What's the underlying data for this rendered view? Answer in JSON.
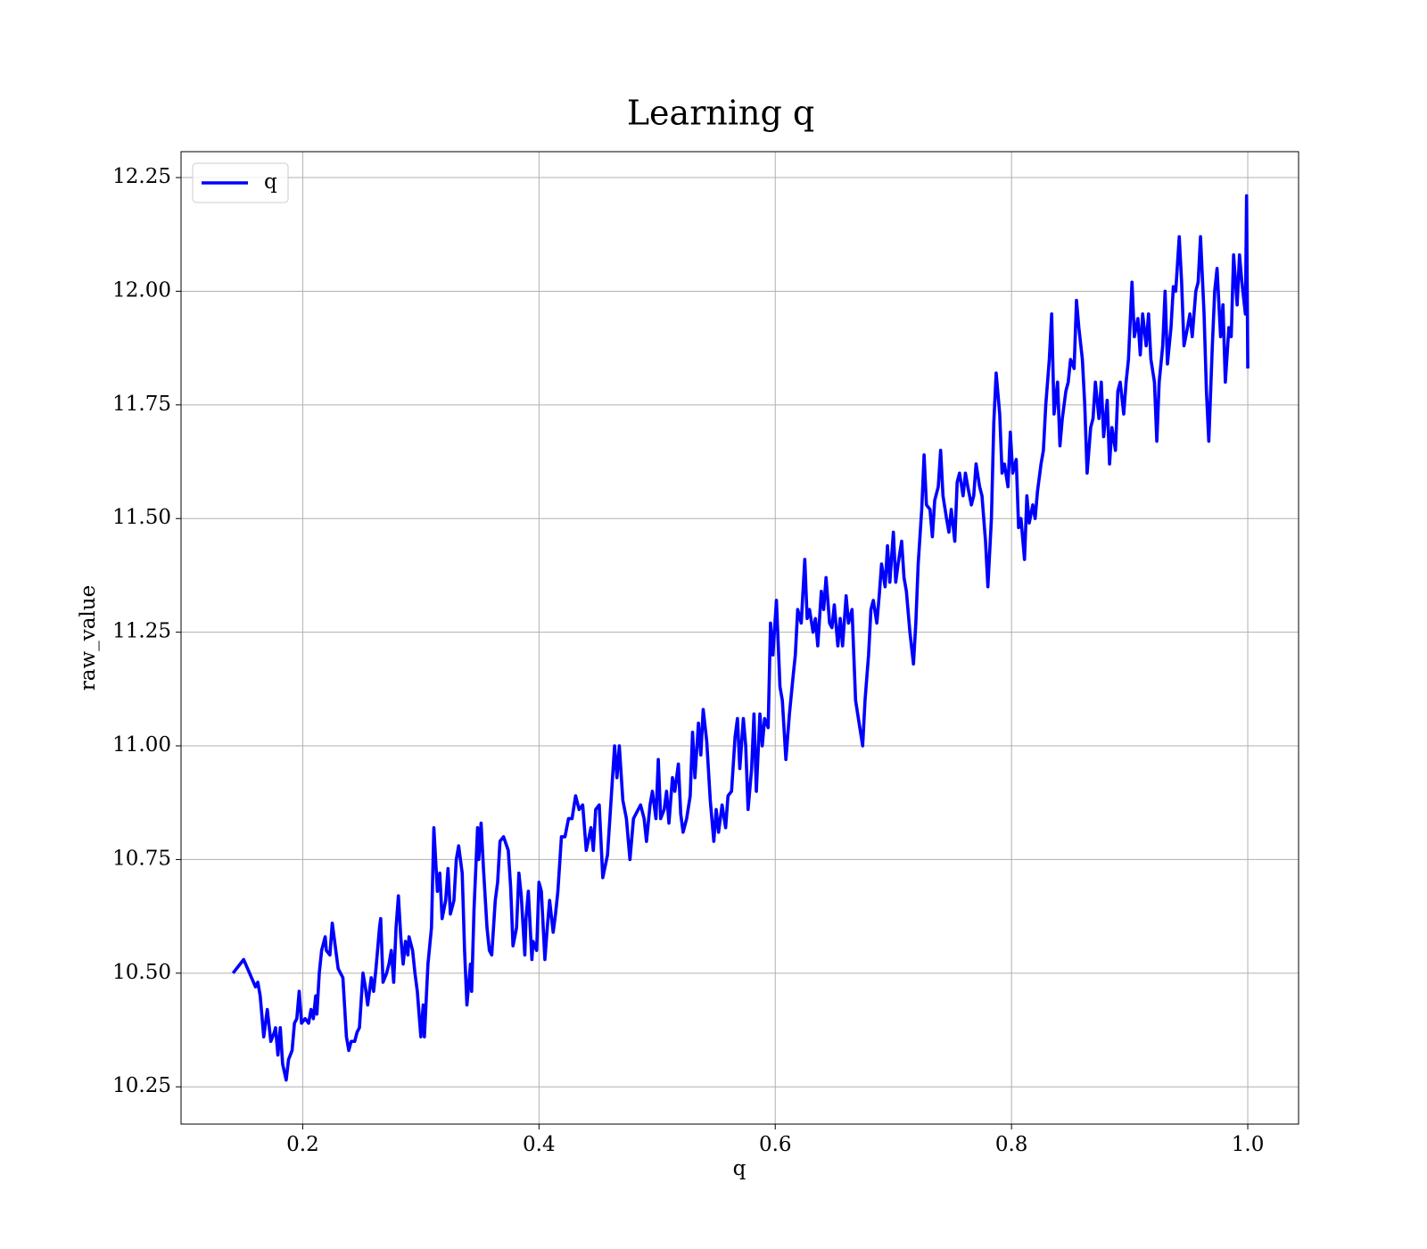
{
  "chart_data": {
    "type": "line",
    "title": "Learning q",
    "xlabel": "q",
    "ylabel": "raw_value",
    "x": [
      0.141,
      0.15,
      0.16,
      0.162,
      0.164,
      0.167,
      0.17,
      0.173,
      0.176,
      0.177,
      0.179,
      0.181,
      0.183,
      0.186,
      0.188,
      0.191,
      0.193,
      0.195,
      0.197,
      0.199,
      0.202,
      0.205,
      0.207,
      0.209,
      0.211,
      0.212,
      0.214,
      0.216,
      0.219,
      0.22,
      0.223,
      0.225,
      0.227,
      0.23,
      0.232,
      0.234,
      0.237,
      0.239,
      0.241,
      0.244,
      0.246,
      0.248,
      0.251,
      0.253,
      0.255,
      0.258,
      0.26,
      0.262,
      0.265,
      0.266,
      0.268,
      0.271,
      0.273,
      0.275,
      0.277,
      0.279,
      0.281,
      0.283,
      0.285,
      0.287,
      0.289,
      0.29,
      0.293,
      0.295,
      0.297,
      0.3,
      0.302,
      0.303,
      0.306,
      0.309,
      0.311,
      0.314,
      0.316,
      0.318,
      0.321,
      0.323,
      0.325,
      0.328,
      0.33,
      0.332,
      0.335,
      0.337,
      0.339,
      0.342,
      0.343,
      0.345,
      0.348,
      0.349,
      0.351,
      0.353,
      0.356,
      0.358,
      0.36,
      0.363,
      0.365,
      0.367,
      0.37,
      0.374,
      0.376,
      0.378,
      0.381,
      0.383,
      0.385,
      0.388,
      0.389,
      0.391,
      0.394,
      0.395,
      0.398,
      0.4,
      0.402,
      0.405,
      0.407,
      0.409,
      0.412,
      0.414,
      0.416,
      0.419,
      0.422,
      0.425,
      0.428,
      0.431,
      0.434,
      0.437,
      0.44,
      0.444,
      0.446,
      0.448,
      0.451,
      0.454,
      0.458,
      0.461,
      0.464,
      0.466,
      0.468,
      0.471,
      0.474,
      0.477,
      0.48,
      0.482,
      0.486,
      0.489,
      0.491,
      0.494,
      0.496,
      0.499,
      0.501,
      0.503,
      0.506,
      0.508,
      0.51,
      0.513,
      0.515,
      0.518,
      0.52,
      0.522,
      0.525,
      0.528,
      0.53,
      0.532,
      0.535,
      0.537,
      0.539,
      0.542,
      0.545,
      0.548,
      0.55,
      0.552,
      0.555,
      0.558,
      0.56,
      0.563,
      0.566,
      0.568,
      0.57,
      0.573,
      0.575,
      0.577,
      0.58,
      0.582,
      0.584,
      0.587,
      0.589,
      0.591,
      0.594,
      0.596,
      0.598,
      0.601,
      0.604,
      0.606,
      0.609,
      0.612,
      0.615,
      0.617,
      0.619,
      0.622,
      0.625,
      0.627,
      0.629,
      0.632,
      0.634,
      0.636,
      0.639,
      0.641,
      0.643,
      0.646,
      0.648,
      0.65,
      0.653,
      0.655,
      0.657,
      0.66,
      0.662,
      0.665,
      0.668,
      0.671,
      0.674,
      0.676,
      0.679,
      0.681,
      0.683,
      0.686,
      0.688,
      0.69,
      0.693,
      0.695,
      0.697,
      0.7,
      0.702,
      0.704,
      0.707,
      0.709,
      0.711,
      0.714,
      0.717,
      0.719,
      0.721,
      0.724,
      0.726,
      0.728,
      0.731,
      0.733,
      0.735,
      0.738,
      0.74,
      0.742,
      0.745,
      0.747,
      0.749,
      0.752,
      0.754,
      0.756,
      0.759,
      0.761,
      0.763,
      0.766,
      0.768,
      0.77,
      0.773,
      0.775,
      0.778,
      0.78,
      0.783,
      0.785,
      0.787,
      0.79,
      0.792,
      0.794,
      0.797,
      0.799,
      0.801,
      0.804,
      0.806,
      0.808,
      0.811,
      0.813,
      0.815,
      0.818,
      0.82,
      0.822,
      0.825,
      0.827,
      0.829,
      0.832,
      0.834,
      0.836,
      0.839,
      0.841,
      0.843,
      0.846,
      0.848,
      0.85,
      0.853,
      0.855,
      0.857,
      0.86,
      0.862,
      0.864,
      0.867,
      0.869,
      0.871,
      0.874,
      0.876,
      0.878,
      0.881,
      0.883,
      0.885,
      0.888,
      0.89,
      0.892,
      0.895,
      0.897,
      0.899,
      0.902,
      0.904,
      0.907,
      0.909,
      0.911,
      0.914,
      0.916,
      0.918,
      0.921,
      0.923,
      0.925,
      0.928,
      0.93,
      0.932,
      0.935,
      0.937,
      0.939,
      0.942,
      0.944,
      0.946,
      0.949,
      0.951,
      0.953,
      0.956,
      0.958,
      0.96,
      0.963,
      0.965,
      0.967,
      0.97,
      0.972,
      0.974,
      0.977,
      0.979,
      0.981,
      0.984,
      0.986,
      0.988,
      0.991,
      0.993,
      0.995,
      0.998,
      0.999,
      1.0
    ],
    "series": [
      {
        "name": "q",
        "color": "#0000ff",
        "values": [
          10.5,
          10.53,
          10.47,
          10.48,
          10.45,
          10.36,
          10.42,
          10.35,
          10.37,
          10.38,
          10.32,
          10.38,
          10.3,
          10.265,
          10.31,
          10.33,
          10.39,
          10.4,
          10.46,
          10.39,
          10.4,
          10.39,
          10.42,
          10.4,
          10.45,
          10.41,
          10.5,
          10.55,
          10.58,
          10.55,
          10.54,
          10.61,
          10.57,
          10.51,
          10.5,
          10.49,
          10.36,
          10.33,
          10.35,
          10.35,
          10.37,
          10.38,
          10.5,
          10.47,
          10.43,
          10.49,
          10.46,
          10.51,
          10.6,
          10.62,
          10.48,
          10.5,
          10.52,
          10.55,
          10.48,
          10.6,
          10.67,
          10.58,
          10.52,
          10.57,
          10.54,
          10.58,
          10.55,
          10.5,
          10.46,
          10.36,
          10.43,
          10.36,
          10.52,
          10.6,
          10.82,
          10.68,
          10.72,
          10.62,
          10.66,
          10.73,
          10.63,
          10.66,
          10.75,
          10.78,
          10.72,
          10.55,
          10.43,
          10.52,
          10.46,
          10.64,
          10.82,
          10.75,
          10.83,
          10.73,
          10.6,
          10.55,
          10.54,
          10.66,
          10.7,
          10.79,
          10.8,
          10.77,
          10.69,
          10.56,
          10.6,
          10.72,
          10.67,
          10.54,
          10.62,
          10.68,
          10.53,
          10.57,
          10.55,
          10.7,
          10.68,
          10.53,
          10.6,
          10.66,
          10.59,
          10.63,
          10.68,
          10.8,
          10.8,
          10.84,
          10.84,
          10.89,
          10.86,
          10.87,
          10.77,
          10.82,
          10.77,
          10.86,
          10.87,
          10.71,
          10.76,
          10.88,
          11.0,
          10.93,
          11.0,
          10.88,
          10.84,
          10.75,
          10.84,
          10.85,
          10.87,
          10.84,
          10.79,
          10.87,
          10.9,
          10.84,
          10.97,
          10.84,
          10.86,
          10.9,
          10.83,
          10.93,
          10.9,
          10.96,
          10.85,
          10.81,
          10.84,
          10.89,
          11.03,
          10.93,
          11.05,
          10.98,
          11.08,
          11.01,
          10.88,
          10.79,
          10.86,
          10.81,
          10.87,
          10.82,
          10.89,
          10.9,
          11.02,
          11.06,
          10.95,
          11.06,
          11.0,
          10.86,
          10.95,
          11.07,
          10.9,
          11.07,
          11.0,
          11.06,
          11.04,
          11.27,
          11.2,
          11.32,
          11.13,
          11.1,
          10.97,
          11.07,
          11.15,
          11.2,
          11.3,
          11.27,
          11.41,
          11.28,
          11.3,
          11.25,
          11.28,
          11.22,
          11.34,
          11.3,
          11.37,
          11.27,
          11.26,
          11.31,
          11.22,
          11.28,
          11.22,
          11.33,
          11.27,
          11.3,
          11.1,
          11.05,
          11.0,
          11.1,
          11.2,
          11.3,
          11.32,
          11.27,
          11.33,
          11.4,
          11.35,
          11.44,
          11.36,
          11.47,
          11.36,
          11.4,
          11.45,
          11.37,
          11.34,
          11.25,
          11.18,
          11.27,
          11.4,
          11.52,
          11.64,
          11.53,
          11.52,
          11.46,
          11.54,
          11.57,
          11.65,
          11.55,
          11.5,
          11.47,
          11.52,
          11.45,
          11.58,
          11.6,
          11.55,
          11.6,
          11.57,
          11.53,
          11.55,
          11.62,
          11.57,
          11.55,
          11.45,
          11.35,
          11.5,
          11.71,
          11.82,
          11.73,
          11.6,
          11.62,
          11.57,
          11.69,
          11.6,
          11.63,
          11.48,
          11.5,
          11.41,
          11.55,
          11.49,
          11.53,
          11.5,
          11.56,
          11.62,
          11.65,
          11.75,
          11.85,
          11.95,
          11.73,
          11.8,
          11.66,
          11.72,
          11.78,
          11.8,
          11.85,
          11.83,
          11.98,
          11.92,
          11.85,
          11.75,
          11.6,
          11.7,
          11.72,
          11.8,
          11.72,
          11.8,
          11.68,
          11.76,
          11.62,
          11.7,
          11.65,
          11.78,
          11.8,
          11.73,
          11.8,
          11.85,
          12.02,
          11.9,
          11.94,
          11.86,
          11.95,
          11.88,
          11.95,
          11.85,
          11.8,
          11.67,
          11.8,
          11.88,
          12.0,
          11.84,
          11.92,
          12.01,
          12.0,
          12.12,
          12.02,
          11.88,
          11.92,
          11.95,
          11.9,
          12.0,
          12.02,
          12.12,
          11.95,
          11.78,
          11.67,
          11.88,
          12.0,
          12.05,
          11.9,
          11.97,
          11.8,
          11.92,
          11.9,
          12.08,
          11.97,
          12.08,
          12.02,
          11.95,
          12.21,
          11.83
        ]
      }
    ],
    "xlim": [
      0.097,
      1.043
    ],
    "xticks": [
      0.2,
      0.4,
      0.6,
      0.8,
      {
        "value": 1,
        "label": "1.0"
      }
    ],
    "ylim": [
      10.168,
      12.307
    ],
    "yticks": [
      10.25,
      {
        "value": 10.5,
        "label": "10.50"
      },
      10.75,
      {
        "value": 11,
        "label": "11.00"
      },
      11.25,
      {
        "value": 11.5,
        "label": "11.50"
      },
      11.75,
      {
        "value": 12,
        "label": "12.00"
      },
      12.25
    ],
    "grid": true,
    "legend": "upper left"
  }
}
